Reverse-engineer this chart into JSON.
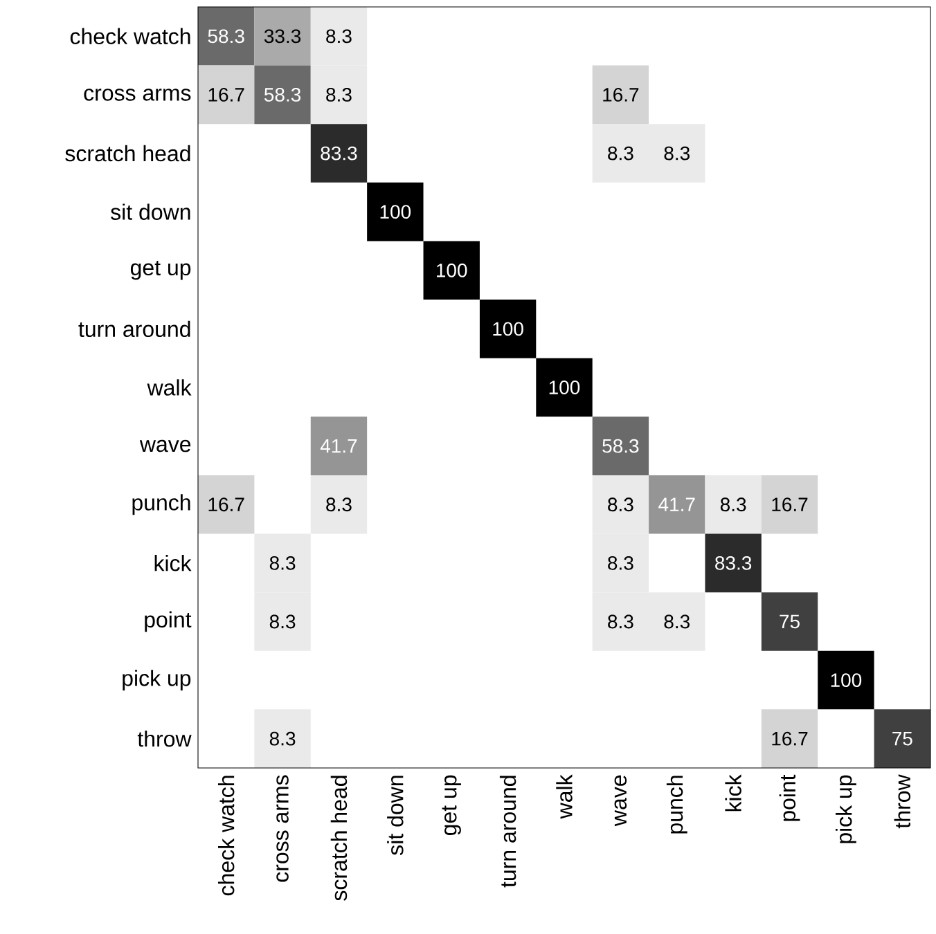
{
  "chart_data": {
    "type": "heatmap",
    "categories": [
      "check watch",
      "cross arms",
      "scratch head",
      "sit down",
      "get up",
      "turn around",
      "walk",
      "wave",
      "punch",
      "kick",
      "point",
      "pick up",
      "throw"
    ],
    "y_categories": [
      "check watch",
      "cross arms",
      "scratch head",
      "sit down",
      "get up",
      "turn around",
      "walk",
      "wave",
      "punch",
      "kick",
      "point",
      "pick up",
      "throw"
    ],
    "cells": [
      [
        58.3,
        33.3,
        8.3,
        null,
        null,
        null,
        null,
        null,
        null,
        null,
        null,
        null,
        null
      ],
      [
        16.7,
        58.3,
        8.3,
        null,
        null,
        null,
        null,
        16.7,
        null,
        null,
        null,
        null,
        null
      ],
      [
        null,
        null,
        83.3,
        null,
        null,
        null,
        null,
        8.3,
        8.3,
        null,
        null,
        null,
        null
      ],
      [
        null,
        null,
        null,
        100,
        null,
        null,
        null,
        null,
        null,
        null,
        null,
        null,
        null
      ],
      [
        null,
        null,
        null,
        null,
        100,
        null,
        null,
        null,
        null,
        null,
        null,
        null,
        null
      ],
      [
        null,
        null,
        null,
        null,
        null,
        100,
        null,
        null,
        null,
        null,
        null,
        null,
        null
      ],
      [
        null,
        null,
        null,
        null,
        null,
        null,
        100,
        null,
        null,
        null,
        null,
        null,
        null
      ],
      [
        null,
        null,
        41.7,
        null,
        null,
        null,
        null,
        58.3,
        null,
        null,
        null,
        null,
        null
      ],
      [
        16.7,
        null,
        8.3,
        null,
        null,
        null,
        null,
        8.3,
        41.7,
        8.3,
        16.7,
        null,
        null
      ],
      [
        null,
        8.3,
        null,
        null,
        null,
        null,
        null,
        8.3,
        null,
        83.3,
        null,
        null,
        null
      ],
      [
        null,
        8.3,
        null,
        null,
        null,
        null,
        null,
        8.3,
        8.3,
        null,
        75,
        null,
        null
      ],
      [
        null,
        null,
        null,
        null,
        null,
        null,
        null,
        null,
        null,
        null,
        null,
        100,
        null
      ],
      [
        null,
        8.3,
        null,
        null,
        null,
        null,
        null,
        null,
        null,
        null,
        16.7,
        null,
        75
      ]
    ],
    "data_labels": true
  }
}
